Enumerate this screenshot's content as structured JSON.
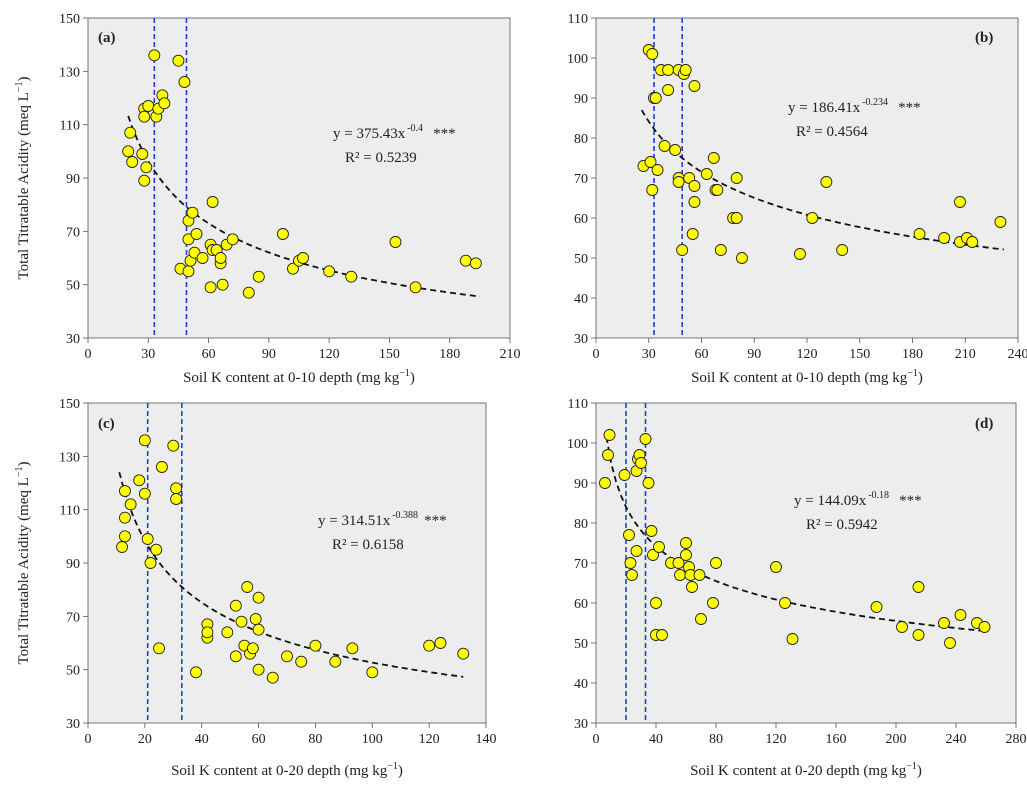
{
  "chart_data": [
    {
      "type": "scatter",
      "panel": "(a)",
      "xlabel": "Soil K content at 0-10 depth (mg kg",
      "xlabel_sup": "−1",
      "xlabel_end": ")",
      "ylabel": "Total Titratable Acidity (meq L",
      "ylabel_sup": "−1",
      "ylabel_end": ")",
      "xlim": [
        0,
        210
      ],
      "ylim": [
        30,
        150
      ],
      "xticks": [
        0,
        30,
        60,
        90,
        120,
        150,
        180,
        210
      ],
      "yticks": [
        30,
        50,
        70,
        90,
        110,
        130,
        150
      ],
      "equation": "y = 375.43x",
      "equation_exp": "-0.4",
      "equation_sig": "***",
      "r2": "R² = 0.5239",
      "fit": {
        "a": 375.43,
        "b": -0.4,
        "xrange": [
          20,
          195
        ]
      },
      "vlines": [
        33,
        49
      ],
      "points": [
        [
          20,
          100
        ],
        [
          21,
          107
        ],
        [
          22,
          96
        ],
        [
          27,
          99
        ],
        [
          28,
          116
        ],
        [
          28,
          89
        ],
        [
          28,
          113
        ],
        [
          29,
          94
        ],
        [
          30,
          117
        ],
        [
          33,
          136
        ],
        [
          34,
          113
        ],
        [
          35,
          116
        ],
        [
          37,
          121
        ],
        [
          38,
          118
        ],
        [
          45,
          134
        ],
        [
          48,
          126
        ],
        [
          46,
          56
        ],
        [
          50,
          55
        ],
        [
          50,
          67
        ],
        [
          50,
          74
        ],
        [
          51,
          59
        ],
        [
          52,
          77
        ],
        [
          53,
          62
        ],
        [
          54,
          69
        ],
        [
          57,
          60
        ],
        [
          61,
          65
        ],
        [
          61,
          49
        ],
        [
          62,
          81
        ],
        [
          62,
          63
        ],
        [
          64,
          63
        ],
        [
          66,
          58
        ],
        [
          66,
          60
        ],
        [
          67,
          50
        ],
        [
          69,
          65
        ],
        [
          72,
          67
        ],
        [
          80,
          47
        ],
        [
          85,
          53
        ],
        [
          97,
          69
        ],
        [
          102,
          56
        ],
        [
          105,
          59
        ],
        [
          107,
          60
        ],
        [
          120,
          55
        ],
        [
          131,
          53
        ],
        [
          153,
          66
        ],
        [
          163,
          49
        ],
        [
          188,
          59
        ],
        [
          193,
          58
        ]
      ]
    },
    {
      "type": "scatter",
      "panel": "(b)",
      "xlabel": "Soil K content at 0-10 depth (mg kg",
      "xlabel_sup": "−1",
      "xlabel_end": ")",
      "xlim": [
        0,
        240
      ],
      "ylim": [
        30,
        110
      ],
      "xticks": [
        0,
        30,
        60,
        90,
        120,
        150,
        180,
        210,
        240
      ],
      "yticks": [
        30,
        40,
        50,
        60,
        70,
        80,
        90,
        100,
        110
      ],
      "equation": "y = 186.41x",
      "equation_exp": "-0.234",
      "equation_sig": "***",
      "r2": "R² = 0.4564",
      "fit": {
        "a": 186.41,
        "b": -0.234,
        "xrange": [
          26,
          232
        ]
      },
      "vlines": [
        33,
        49
      ],
      "points": [
        [
          27,
          73
        ],
        [
          30,
          102
        ],
        [
          31,
          74
        ],
        [
          32,
          101
        ],
        [
          32,
          67
        ],
        [
          33,
          90
        ],
        [
          34,
          90
        ],
        [
          35,
          72
        ],
        [
          37,
          97
        ],
        [
          39,
          78
        ],
        [
          41,
          97
        ],
        [
          41,
          92
        ],
        [
          45,
          77
        ],
        [
          47,
          97
        ],
        [
          47,
          70
        ],
        [
          47,
          69
        ],
        [
          49,
          52
        ],
        [
          50,
          96
        ],
        [
          51,
          97
        ],
        [
          53,
          70
        ],
        [
          55,
          56
        ],
        [
          56,
          93
        ],
        [
          56,
          64
        ],
        [
          56,
          68
        ],
        [
          63,
          71
        ],
        [
          67,
          75
        ],
        [
          68,
          67
        ],
        [
          69,
          67
        ],
        [
          71,
          52
        ],
        [
          78,
          60
        ],
        [
          80,
          70
        ],
        [
          80,
          60
        ],
        [
          83,
          50
        ],
        [
          116,
          51
        ],
        [
          123,
          60
        ],
        [
          131,
          69
        ],
        [
          140,
          52
        ],
        [
          184,
          56
        ],
        [
          198,
          55
        ],
        [
          207,
          64
        ],
        [
          207,
          54
        ],
        [
          211,
          55
        ],
        [
          214,
          54
        ],
        [
          230,
          59
        ]
      ]
    },
    {
      "type": "scatter",
      "panel": "(c)",
      "xlabel": "Soil K content at 0-20 depth (mg kg",
      "xlabel_sup": "−1",
      "xlabel_end": ")",
      "ylabel": "Total Titratable Acidity (meq L",
      "ylabel_sup": "−1",
      "ylabel_end": ")",
      "xlim": [
        0,
        140
      ],
      "ylim": [
        30,
        150
      ],
      "xticks": [
        0,
        20,
        40,
        60,
        80,
        100,
        120,
        140
      ],
      "yticks": [
        30,
        50,
        70,
        90,
        110,
        130,
        150
      ],
      "equation": "y = 314.51x",
      "equation_exp": "-0.388",
      "equation_sig": "***",
      "r2": "R² = 0.6158",
      "fit": {
        "a": 314.51,
        "b": -0.388,
        "xrange": [
          11,
          132
        ]
      },
      "vlines": [
        21,
        33
      ],
      "points": [
        [
          12,
          96
        ],
        [
          13,
          100
        ],
        [
          13,
          107
        ],
        [
          13,
          117
        ],
        [
          15,
          112
        ],
        [
          18,
          121
        ],
        [
          20,
          116
        ],
        [
          20,
          136
        ],
        [
          21,
          99
        ],
        [
          22,
          90
        ],
        [
          24,
          95
        ],
        [
          25,
          58
        ],
        [
          26,
          126
        ],
        [
          30,
          134
        ],
        [
          31,
          118
        ],
        [
          31,
          114
        ],
        [
          38,
          49
        ],
        [
          42,
          62
        ],
        [
          42,
          67
        ],
        [
          42,
          64
        ],
        [
          49,
          64
        ],
        [
          52,
          55
        ],
        [
          52,
          74
        ],
        [
          54,
          68
        ],
        [
          55,
          59
        ],
        [
          56,
          81
        ],
        [
          57,
          56
        ],
        [
          58,
          58
        ],
        [
          59,
          69
        ],
        [
          60,
          65
        ],
        [
          60,
          77
        ],
        [
          60,
          50
        ],
        [
          65,
          47
        ],
        [
          70,
          55
        ],
        [
          75,
          53
        ],
        [
          80,
          59
        ],
        [
          87,
          53
        ],
        [
          93,
          58
        ],
        [
          100,
          49
        ],
        [
          120,
          59
        ],
        [
          124,
          60
        ],
        [
          132,
          56
        ]
      ]
    },
    {
      "type": "scatter",
      "panel": "(d)",
      "xlabel": "Soil K content at 0-20 depth (mg kg",
      "xlabel_sup": "−1",
      "xlabel_end": ")",
      "xlim": [
        0,
        280
      ],
      "ylim": [
        30,
        110
      ],
      "xticks": [
        0,
        40,
        80,
        120,
        160,
        200,
        240,
        280
      ],
      "yticks": [
        30,
        40,
        50,
        60,
        70,
        80,
        90,
        100,
        110
      ],
      "equation": "y = 144.09x",
      "equation_exp": "-0.18",
      "equation_sig": "***",
      "r2": "R² = 0.5942",
      "fit": {
        "a": 144.09,
        "b": -0.18,
        "xrange": [
          7,
          260
        ]
      },
      "vlines": [
        20,
        33
      ],
      "points": [
        [
          6,
          90
        ],
        [
          8,
          97
        ],
        [
          9,
          102
        ],
        [
          19,
          92
        ],
        [
          22,
          77
        ],
        [
          23,
          70
        ],
        [
          24,
          67
        ],
        [
          27,
          73
        ],
        [
          27,
          93
        ],
        [
          28,
          96
        ],
        [
          29,
          97
        ],
        [
          30,
          95
        ],
        [
          33,
          101
        ],
        [
          35,
          90
        ],
        [
          37,
          78
        ],
        [
          38,
          72
        ],
        [
          40,
          60
        ],
        [
          40,
          52
        ],
        [
          42,
          74
        ],
        [
          44,
          52
        ],
        [
          50,
          70
        ],
        [
          55,
          70
        ],
        [
          56,
          67
        ],
        [
          60,
          75
        ],
        [
          60,
          72
        ],
        [
          62,
          69
        ],
        [
          63,
          67
        ],
        [
          64,
          64
        ],
        [
          69,
          67
        ],
        [
          70,
          56
        ],
        [
          78,
          60
        ],
        [
          80,
          70
        ],
        [
          120,
          69
        ],
        [
          126,
          60
        ],
        [
          131,
          51
        ],
        [
          187,
          59
        ],
        [
          204,
          54
        ],
        [
          215,
          64
        ],
        [
          215,
          52
        ],
        [
          232,
          55
        ],
        [
          236,
          50
        ],
        [
          243,
          57
        ],
        [
          254,
          55
        ],
        [
          259,
          54
        ]
      ]
    }
  ]
}
